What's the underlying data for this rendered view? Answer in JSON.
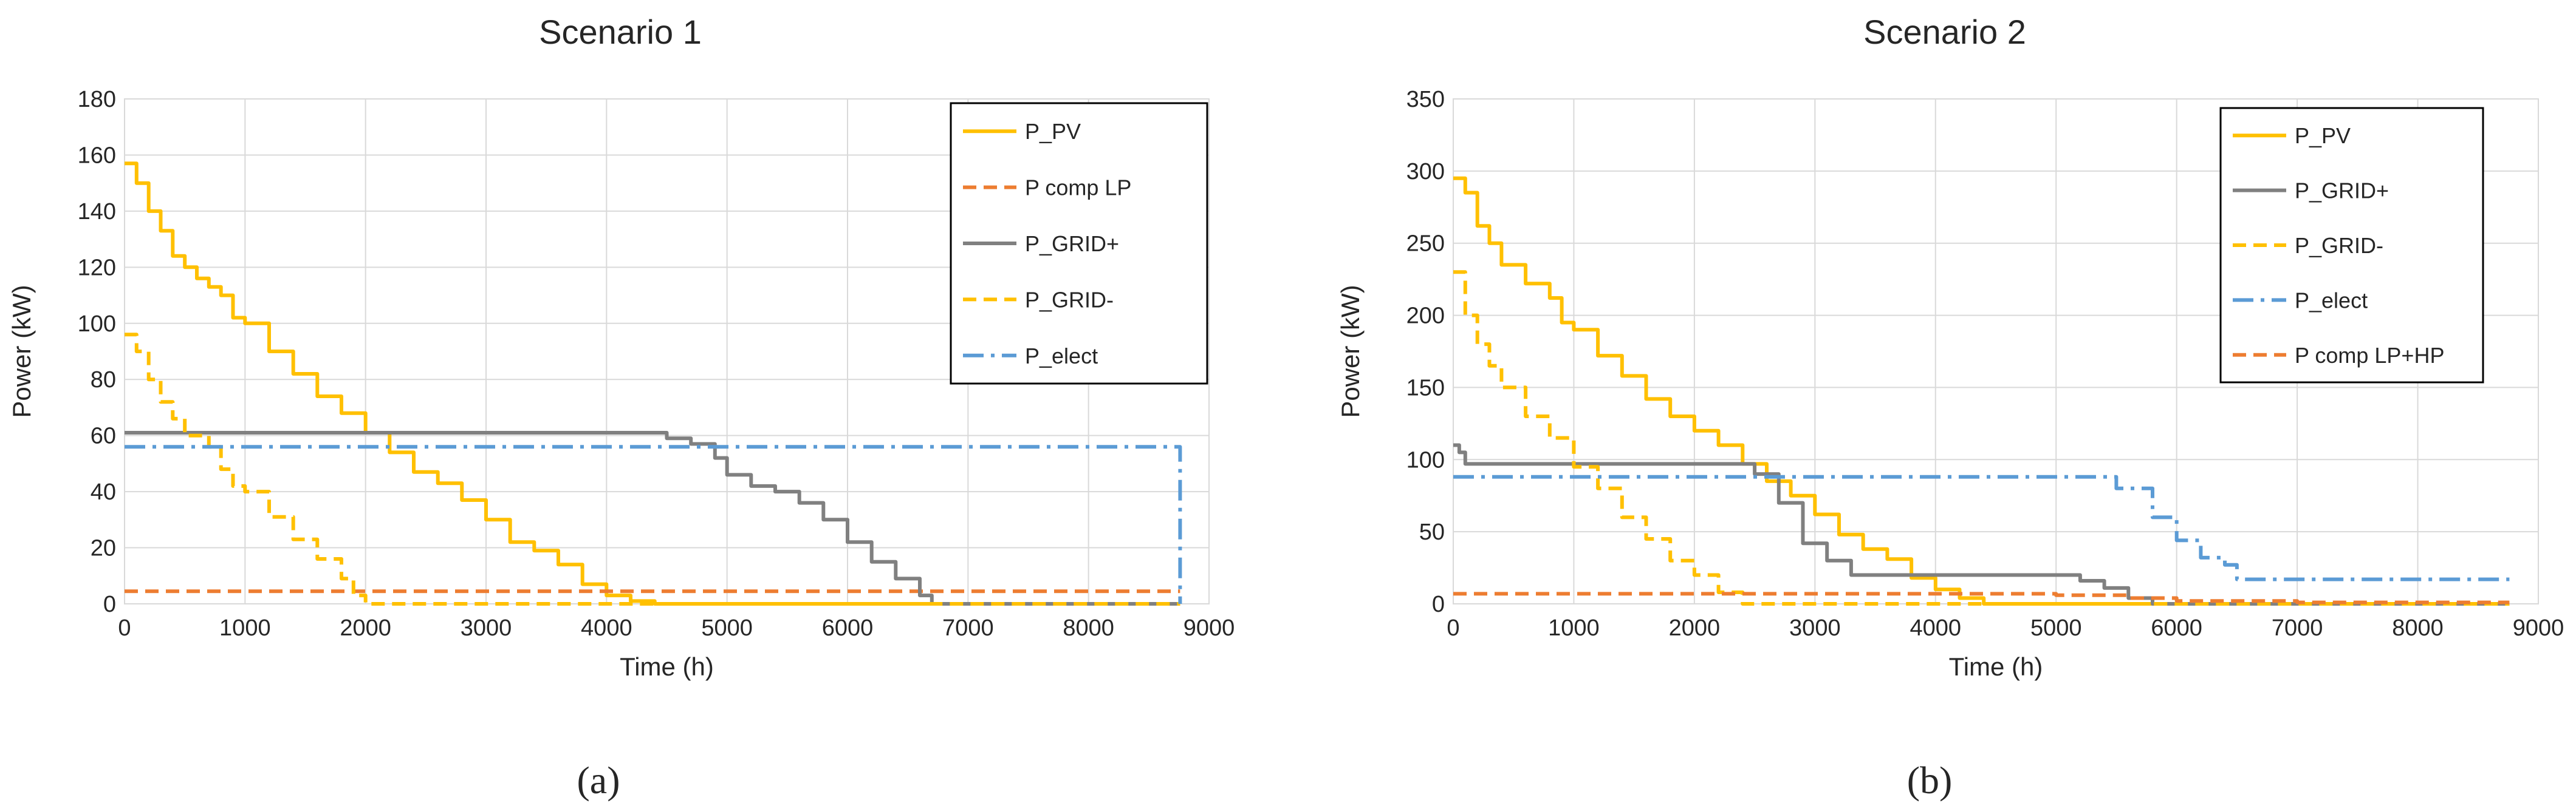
{
  "chart_data": [
    {
      "type": "line",
      "panel_label": "(a)",
      "title": "Scenario 1",
      "xlabel": "Time (h)",
      "ylabel": "Power (kW)",
      "xlim": [
        0,
        9000
      ],
      "ylim": [
        0,
        180
      ],
      "xticks": [
        0,
        1000,
        2000,
        3000,
        4000,
        5000,
        6000,
        7000,
        8000,
        9000
      ],
      "yticks": [
        0,
        20,
        40,
        60,
        80,
        100,
        120,
        140,
        160,
        180
      ],
      "grid": true,
      "legend_position": "top-right",
      "series": [
        {
          "name": "P_PV",
          "color": "#FFC000",
          "dash": "solid",
          "x": [
            0,
            100,
            200,
            300,
            400,
            500,
            600,
            700,
            800,
            900,
            1000,
            1200,
            1400,
            1600,
            1800,
            2000,
            2200,
            2400,
            2600,
            2800,
            3000,
            3200,
            3400,
            3600,
            3800,
            4000,
            4200,
            4400,
            8760
          ],
          "y": [
            157,
            150,
            140,
            133,
            124,
            120,
            116,
            113,
            110,
            102,
            100,
            90,
            82,
            74,
            68,
            61,
            54,
            47,
            43,
            37,
            30,
            22,
            19,
            14,
            7,
            3,
            1,
            0,
            0
          ]
        },
        {
          "name": "P comp LP",
          "color": "#ED7D31",
          "dash": "dashed",
          "x": [
            0,
            8760
          ],
          "y": [
            4.5,
            4.5
          ]
        },
        {
          "name": "P_GRID+",
          "color": "#808080",
          "dash": "solid",
          "x": [
            0,
            4300,
            4500,
            4700,
            4900,
            5000,
            5200,
            5400,
            5600,
            5800,
            6000,
            6200,
            6400,
            6600,
            6700,
            8760
          ],
          "y": [
            61,
            61,
            59,
            57,
            52,
            46,
            42,
            40,
            36,
            30,
            22,
            15,
            9,
            3,
            0,
            0
          ]
        },
        {
          "name": "P_GRID-",
          "color": "#FFC000",
          "dash": "dashed",
          "x": [
            0,
            100,
            200,
            300,
            400,
            500,
            700,
            800,
            900,
            1000,
            1200,
            1400,
            1600,
            1800,
            1900,
            2000,
            8760
          ],
          "y": [
            96,
            90,
            80,
            72,
            66,
            60,
            56,
            48,
            42,
            40,
            31,
            23,
            16,
            9,
            3,
            0,
            0
          ]
        },
        {
          "name": "P_elect",
          "color": "#5B9BD5",
          "dash": "dashdot",
          "x": [
            0,
            8760,
            8760
          ],
          "y": [
            56,
            56,
            0
          ]
        }
      ]
    },
    {
      "type": "line",
      "panel_label": "(b)",
      "title": "Scenario 2",
      "xlabel": "Time (h)",
      "ylabel": "Power (kW)",
      "xlim": [
        0,
        9000
      ],
      "ylim": [
        0,
        350
      ],
      "xticks": [
        0,
        1000,
        2000,
        3000,
        4000,
        5000,
        6000,
        7000,
        8000,
        9000
      ],
      "yticks": [
        0,
        50,
        100,
        150,
        200,
        250,
        300,
        350
      ],
      "grid": true,
      "legend_position": "top-right",
      "series": [
        {
          "name": "P_PV",
          "color": "#FFC000",
          "dash": "solid",
          "x": [
            0,
            100,
            200,
            300,
            400,
            600,
            800,
            900,
            1000,
            1200,
            1400,
            1600,
            1800,
            2000,
            2200,
            2400,
            2600,
            2800,
            3000,
            3200,
            3400,
            3600,
            3800,
            4000,
            4200,
            4400,
            8760
          ],
          "y": [
            295,
            285,
            262,
            250,
            235,
            222,
            212,
            195,
            190,
            172,
            158,
            142,
            130,
            120,
            110,
            97,
            85,
            75,
            62,
            48,
            38,
            31,
            18,
            10,
            4,
            0,
            0
          ]
        },
        {
          "name": "P_GRID+",
          "color": "#808080",
          "dash": "solid",
          "x": [
            0,
            50,
            100,
            2300,
            2500,
            2700,
            2900,
            3100,
            3300,
            5000,
            5200,
            5400,
            5600,
            5800,
            8760
          ],
          "y": [
            110,
            105,
            97,
            97,
            90,
            70,
            42,
            30,
            20,
            20,
            16,
            11,
            4,
            0,
            0
          ]
        },
        {
          "name": "P_GRID-",
          "color": "#FFC000",
          "dash": "dashed",
          "x": [
            0,
            100,
            200,
            300,
            400,
            600,
            800,
            1000,
            1200,
            1400,
            1600,
            1800,
            2000,
            2200,
            2400,
            8760
          ],
          "y": [
            230,
            200,
            180,
            165,
            150,
            130,
            115,
            95,
            80,
            60,
            45,
            30,
            20,
            8,
            0,
            0
          ]
        },
        {
          "name": "P_elect",
          "color": "#5B9BD5",
          "dash": "dashdot",
          "x": [
            0,
            5350,
            5500,
            5800,
            6000,
            6200,
            6400,
            6500,
            8760
          ],
          "y": [
            88,
            88,
            80,
            60,
            44,
            32,
            27,
            17,
            17
          ]
        },
        {
          "name": "P comp LP+HP",
          "color": "#ED7D31",
          "dash": "dashed",
          "x": [
            0,
            4000,
            5000,
            5600,
            6000,
            7000,
            8760
          ],
          "y": [
            7,
            7,
            6,
            4,
            2,
            1,
            1
          ]
        }
      ]
    }
  ]
}
